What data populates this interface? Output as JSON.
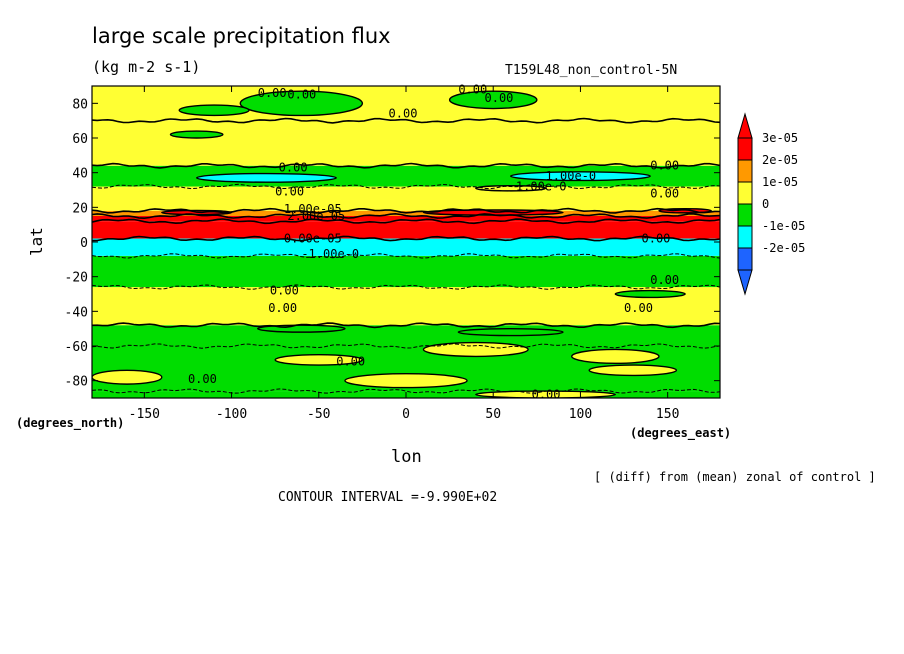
{
  "chart_data": {
    "type": "heatmap",
    "title": "large scale precipitation flux",
    "units": "(kg m-2 s-1)",
    "run_label": "T159L48_non_control-5N",
    "xlabel": "lon",
    "ylabel": "lat",
    "x_unit_label": "(degrees_east)",
    "y_unit_label": "(degrees_north)",
    "xlim": [
      -180,
      180
    ],
    "ylim": [
      -90,
      90
    ],
    "x_ticks": [
      -150,
      -100,
      -50,
      0,
      50,
      100,
      150
    ],
    "y_ticks": [
      -80,
      -60,
      -40,
      -20,
      0,
      20,
      40,
      60,
      80
    ],
    "x_tick_labels": [
      "-150",
      "-100",
      "-50",
      "0",
      "50",
      "100",
      "150"
    ],
    "y_tick_labels": [
      "-80",
      "-60",
      "-40",
      "-20",
      "0",
      "20",
      "40",
      "60",
      "80"
    ],
    "diff_note": "[ (diff) from (mean) zonal of control ]",
    "contour_interval": "CONTOUR INTERVAL =-9.990E+02",
    "colorbar": {
      "labels": [
        "3e-05",
        "2e-05",
        "1e-05",
        "0",
        "-1e-05",
        "-2e-05"
      ],
      "levels": [
        -3e-05,
        -2e-05,
        -1e-05,
        0,
        1e-05,
        2e-05,
        3e-05
      ],
      "colors": [
        "#1e64ff",
        "#00ffff",
        "#00dd00",
        "#ffff33",
        "#ff9900",
        "#ff0000"
      ],
      "under_color": "#1e64ff",
      "over_color": "#ff0000"
    },
    "zonal_bands": [
      {
        "lat_min": -90,
        "lat_max": -86,
        "value": -5e-06
      },
      {
        "lat_min": -86,
        "lat_max": -60,
        "value": -5e-06
      },
      {
        "lat_min": -60,
        "lat_max": -48,
        "value": -5e-06
      },
      {
        "lat_min": -48,
        "lat_max": -26,
        "value": 5e-06
      },
      {
        "lat_min": -26,
        "lat_max": -8,
        "value": -5e-06
      },
      {
        "lat_min": -8,
        "lat_max": 2,
        "value": -1.5e-05
      },
      {
        "lat_min": 2,
        "lat_max": 12,
        "value": 3.5e-05
      },
      {
        "lat_min": 12,
        "lat_max": 15,
        "value": 2.5e-05
      },
      {
        "lat_min": 15,
        "lat_max": 18,
        "value": 1.5e-05
      },
      {
        "lat_min": 18,
        "lat_max": 32,
        "value": 5e-06
      },
      {
        "lat_min": 32,
        "lat_max": 44,
        "value": -5e-06
      },
      {
        "lat_min": 44,
        "lat_max": 70,
        "value": 5e-06
      },
      {
        "lat_min": 70,
        "lat_max": 90,
        "value": 5e-06
      }
    ],
    "regions": [
      {
        "type": "ellipse",
        "lon": -60,
        "lat": 80,
        "rlon": 35,
        "rlat": 7,
        "value": -5e-06
      },
      {
        "type": "ellipse",
        "lon": 50,
        "lat": 82,
        "rlon": 25,
        "rlat": 5,
        "value": -5e-06
      },
      {
        "type": "ellipse",
        "lon": -110,
        "lat": 76,
        "rlon": 20,
        "rlat": 3,
        "value": -5e-06
      },
      {
        "type": "ellipse",
        "lon": -120,
        "lat": 62,
        "rlon": 15,
        "rlat": 2,
        "value": -5e-06
      },
      {
        "type": "ellipse",
        "lon": 40,
        "lat": -62,
        "rlon": 30,
        "rlat": 4,
        "value": 5e-06
      },
      {
        "type": "ellipse",
        "lon": -50,
        "lat": -68,
        "rlon": 25,
        "rlat": 3,
        "value": 5e-06
      },
      {
        "type": "ellipse",
        "lon": 120,
        "lat": -66,
        "rlon": 25,
        "rlat": 4,
        "value": 5e-06
      },
      {
        "type": "ellipse",
        "lon": -160,
        "lat": -78,
        "rlon": 20,
        "rlat": 4,
        "value": 5e-06
      },
      {
        "type": "ellipse",
        "lon": 0,
        "lat": -80,
        "rlon": 35,
        "rlat": 4,
        "value": 5e-06
      },
      {
        "type": "ellipse",
        "lon": 130,
        "lat": -74,
        "rlon": 25,
        "rlat": 3,
        "value": 5e-06
      },
      {
        "type": "ellipse",
        "lon": 80,
        "lat": -88,
        "rlon": 40,
        "rlat": 2,
        "value": 5e-06
      },
      {
        "type": "ellipse",
        "lon": -60,
        "lat": -50,
        "rlon": 25,
        "rlat": 2,
        "value": -5e-06
      },
      {
        "type": "ellipse",
        "lon": 60,
        "lat": -52,
        "rlon": 30,
        "rlat": 2,
        "value": -5e-06
      },
      {
        "type": "ellipse",
        "lon": 140,
        "lat": -30,
        "rlon": 20,
        "rlat": 2,
        "value": -5e-06
      },
      {
        "type": "ellipse",
        "lon": -80,
        "lat": 37,
        "rlon": 40,
        "rlat": 2.5,
        "value": -1.5e-05
      },
      {
        "type": "ellipse",
        "lon": 100,
        "lat": 38,
        "rlon": 40,
        "rlat": 2.5,
        "value": -1.5e-05
      },
      {
        "type": "ellipse",
        "lon": 60,
        "lat": 31,
        "rlon": 20,
        "rlat": 1.5,
        "value": 5e-06
      },
      {
        "type": "ellipse",
        "lon": 50,
        "lat": 17,
        "rlon": 40,
        "rlat": 1.5,
        "value": 2.5e-05
      },
      {
        "type": "ellipse",
        "lon": -120,
        "lat": 17,
        "rlon": 20,
        "rlat": 1.2,
        "value": 2.5e-05
      },
      {
        "type": "ellipse",
        "lon": 160,
        "lat": 18,
        "rlon": 15,
        "rlat": 1.2,
        "value": 2.5e-05
      }
    ],
    "contour_labels": [
      {
        "lon": -85,
        "lat": 86,
        "text": "0.00"
      },
      {
        "lon": -68,
        "lat": 85,
        "text": "0.00"
      },
      {
        "lon": 30,
        "lat": 88,
        "text": "0.00"
      },
      {
        "lon": 45,
        "lat": 83,
        "text": "0.00"
      },
      {
        "lon": -10,
        "lat": 74,
        "text": "0.00"
      },
      {
        "lon": -73,
        "lat": 43,
        "text": "0.00"
      },
      {
        "lon": 80,
        "lat": 38,
        "text": "1.00e-0"
      },
      {
        "lon": 140,
        "lat": 44,
        "text": "0.00"
      },
      {
        "lon": 63,
        "lat": 32,
        "text": "1.00e-0"
      },
      {
        "lon": -75,
        "lat": 29,
        "text": "0.00"
      },
      {
        "lon": 140,
        "lat": 28,
        "text": "0.00"
      },
      {
        "lon": -70,
        "lat": 19,
        "text": "1.00e-05"
      },
      {
        "lon": -68,
        "lat": 15,
        "text": "2.00e-05"
      },
      {
        "lon": -70,
        "lat": 2,
        "text": "0.00e-05"
      },
      {
        "lon": 135,
        "lat": 2,
        "text": "0.00"
      },
      {
        "lon": -60,
        "lat": -7,
        "text": "-1.00e-0"
      },
      {
        "lon": 140,
        "lat": -22,
        "text": "0.00"
      },
      {
        "lon": -78,
        "lat": -28,
        "text": "0.00"
      },
      {
        "lon": -79,
        "lat": -38,
        "text": "0.00"
      },
      {
        "lon": 125,
        "lat": -38,
        "text": "0.00"
      },
      {
        "lon": -40,
        "lat": -69,
        "text": "0.00"
      },
      {
        "lon": -125,
        "lat": -79,
        "text": "0.00"
      },
      {
        "lon": 72,
        "lat": -88,
        "text": "0.00"
      }
    ]
  }
}
